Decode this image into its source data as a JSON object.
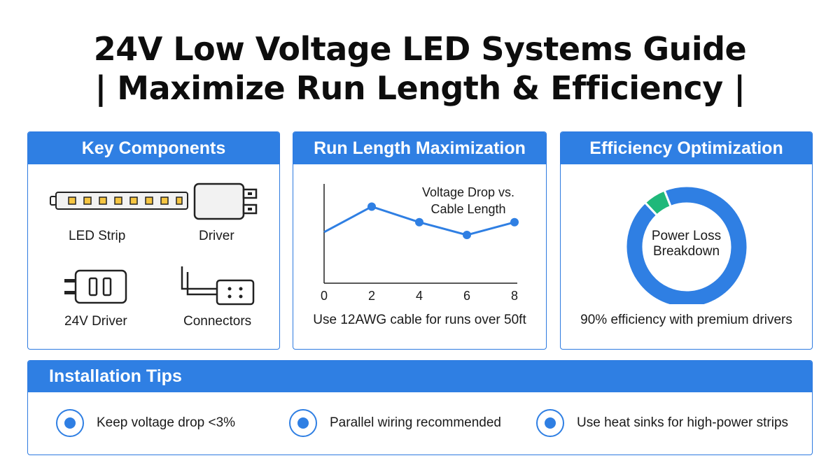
{
  "title_line1": "24V Low Voltage LED Systems Guide",
  "title_line2": "| Maximize Run Length & Efficiency |",
  "components": {
    "header": "Key Components",
    "items": [
      {
        "label": "LED Strip",
        "icon": "led-strip-icon"
      },
      {
        "label": "Driver",
        "icon": "driver-icon"
      },
      {
        "label": "24V Driver",
        "icon": "plug-driver-icon"
      },
      {
        "label": "Connectors",
        "icon": "connector-icon"
      }
    ]
  },
  "run_length": {
    "header": "Run Length Maximization",
    "note": "Use 12AWG cable for runs over 50ft"
  },
  "efficiency": {
    "header": "Efficiency Optimization",
    "donut_label_line1": "Power Loss",
    "donut_label_line2": "Breakdown",
    "note": "90% efficiency with premium drivers"
  },
  "tips": {
    "header": "Installation Tips",
    "items": [
      {
        "text": "Keep voltage drop <3%"
      },
      {
        "text": "Parallel wiring recommended"
      },
      {
        "text": "Use heat sinks for high-power strips"
      }
    ]
  },
  "colors": {
    "accent": "#2f7fe3",
    "donut_main": "#2f7fe3",
    "donut_highlight": "#1fb87a"
  },
  "chart_data": [
    {
      "type": "line",
      "title_line1": "Voltage Drop vs.",
      "title_line2": "Cable Length",
      "x": [
        0,
        2,
        4,
        6,
        8
      ],
      "y": [
        3.6,
        5.4,
        4.3,
        3.4,
        4.3
      ],
      "x_ticks": [
        "0",
        "2",
        "4",
        "6",
        "8"
      ],
      "xlim": [
        0,
        8
      ],
      "ylim": [
        0,
        7
      ],
      "grid": false
    },
    {
      "type": "pie",
      "style": "donut",
      "slices": [
        {
          "value": 94
        },
        {
          "value": 6
        }
      ]
    }
  ]
}
